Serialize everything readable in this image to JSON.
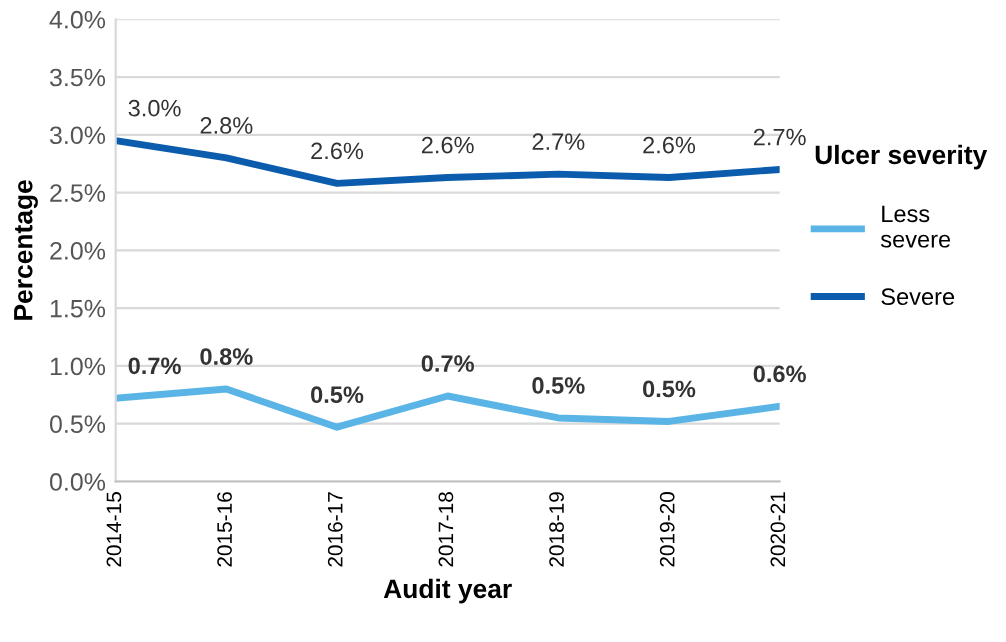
{
  "chart_data": {
    "type": "line",
    "xlabel": "Audit year",
    "ylabel": "Percentage",
    "legend_title": "Ulcer severity",
    "categories": [
      "2014-15",
      "2015-16",
      "2016-17",
      "2017-18",
      "2018-19",
      "2019-20",
      "2020-21"
    ],
    "series": [
      {
        "name": "Less severe",
        "color": "#5ab4e5",
        "values": [
          0.72,
          0.8,
          0.47,
          0.74,
          0.55,
          0.52,
          0.65
        ],
        "value_labels": [
          "0.7%",
          "0.8%",
          "0.5%",
          "0.7%",
          "0.5%",
          "0.5%",
          "0.6%"
        ]
      },
      {
        "name": "Severe",
        "color": "#0b5cad",
        "values": [
          2.95,
          2.8,
          2.58,
          2.63,
          2.66,
          2.63,
          2.7
        ],
        "value_labels": [
          "3.0%",
          "2.8%",
          "2.6%",
          "2.6%",
          "2.7%",
          "2.6%",
          "2.7%"
        ]
      }
    ],
    "ylim": [
      0,
      4
    ],
    "yticks": [
      {
        "value": 0,
        "label": "0.0%"
      },
      {
        "value": 0.5,
        "label": "0.5%"
      },
      {
        "value": 1,
        "label": "1.0%"
      },
      {
        "value": 1.5,
        "label": "1.5%"
      },
      {
        "value": 2,
        "label": "2.0%"
      },
      {
        "value": 2.5,
        "label": "2.5%"
      },
      {
        "value": 3,
        "label": "3.0%"
      },
      {
        "value": 3.5,
        "label": "3.5%"
      },
      {
        "value": 4,
        "label": "4.0%"
      }
    ],
    "grid": "y",
    "legend": "right",
    "marker": "none",
    "line_style": "solid"
  }
}
